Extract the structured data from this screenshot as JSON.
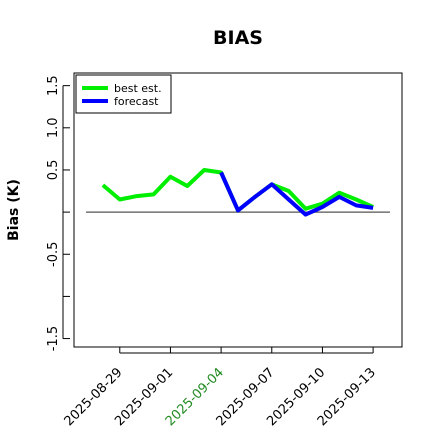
{
  "chart_data": {
    "type": "line",
    "title": "BIAS",
    "xlabel": "",
    "ylabel": "Bias (K)",
    "ylim": [
      -1.6,
      1.65
    ],
    "yticks": [
      -1.5,
      -1.0,
      -0.5,
      0.0,
      0.5,
      1.0,
      1.5
    ],
    "ytick_labels": [
      "-1.5",
      "",
      "-0.5",
      "",
      "0.5",
      "1.0",
      "1.5"
    ],
    "x_dates": [
      "2025-08-26",
      "2025-08-27",
      "2025-08-28",
      "2025-08-29",
      "2025-08-30",
      "2025-08-31",
      "2025-09-01",
      "2025-09-02",
      "2025-09-03",
      "2025-09-04",
      "2025-09-05",
      "2025-09-06",
      "2025-09-07",
      "2025-09-08",
      "2025-09-09",
      "2025-09-10",
      "2025-09-11",
      "2025-09-12",
      "2025-09-13",
      "2025-09-14"
    ],
    "xlim": [
      "2025-08-27",
      "2025-09-14"
    ],
    "xticks": [
      {
        "label": "2025-08-29",
        "color": "#000000"
      },
      {
        "label": "2025-09-01",
        "color": "#000000"
      },
      {
        "label": "2025-09-04",
        "color": "#228b22"
      },
      {
        "label": "2025-09-07",
        "color": "#000000"
      },
      {
        "label": "2025-09-10",
        "color": "#000000"
      },
      {
        "label": "2025-09-13",
        "color": "#000000"
      }
    ],
    "hline": 0,
    "series": [
      {
        "name": "best est.",
        "color": "#00ee00",
        "x": [
          "2025-08-28",
          "2025-08-29",
          "2025-08-30",
          "2025-08-31",
          "2025-09-01",
          "2025-09-02",
          "2025-09-03",
          "2025-09-04",
          "2025-09-05",
          "2025-09-06",
          "2025-09-07",
          "2025-09-08",
          "2025-09-09",
          "2025-09-10",
          "2025-09-11",
          "2025-09-12",
          "2025-09-13"
        ],
        "values": [
          0.32,
          0.15,
          0.19,
          0.21,
          0.42,
          0.31,
          0.5,
          0.47,
          0.02,
          0.18,
          0.33,
          0.25,
          0.04,
          0.1,
          0.23,
          0.15,
          0.06
        ]
      },
      {
        "name": "forecast",
        "color": "#0000ff",
        "x": [
          "2025-09-04",
          "2025-09-05",
          "2025-09-06",
          "2025-09-07",
          "2025-09-08",
          "2025-09-09",
          "2025-09-10",
          "2025-09-11",
          "2025-09-12",
          "2025-09-13"
        ],
        "values": [
          0.47,
          0.02,
          0.18,
          0.33,
          0.15,
          -0.03,
          0.06,
          0.18,
          0.08,
          0.05
        ]
      }
    ],
    "legend_position": "top-left",
    "grid": false
  }
}
